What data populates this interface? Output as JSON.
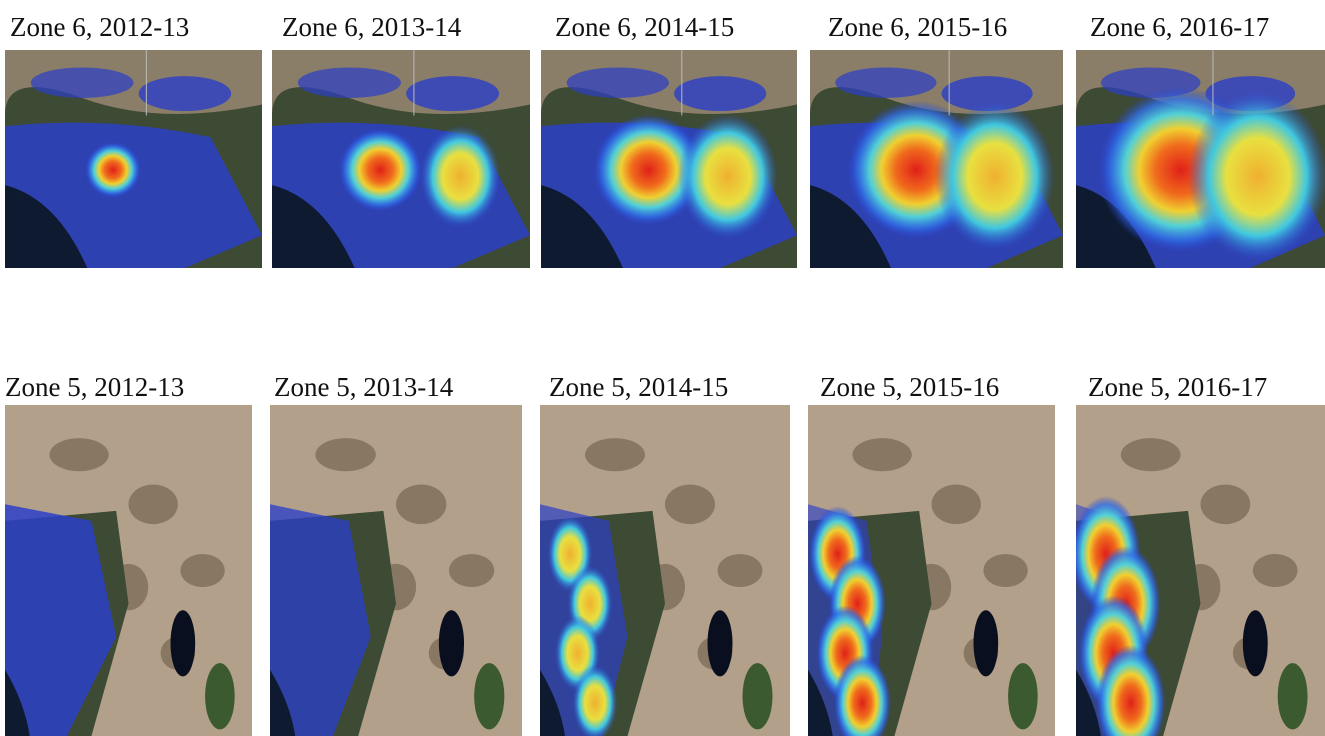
{
  "rows": [
    [
      "Zone 6, 2012-13",
      "Zone 6, 2013-14",
      "Zone 6, 2014-15",
      "Zone 6, 2015-16",
      "Zone 6, 2016-17"
    ],
    [
      "Zone 5, 2012-13",
      "Zone 5, 2013-14",
      "Zone 5, 2014-15",
      "Zone 5, 2015-16",
      "Zone 5, 2016-17"
    ]
  ]
}
